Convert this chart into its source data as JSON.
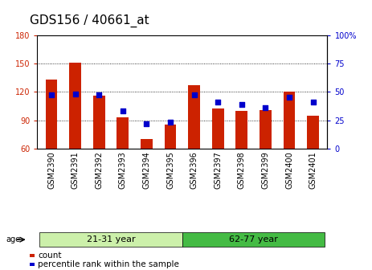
{
  "title": "GDS156 / 40661_at",
  "samples": [
    "GSM2390",
    "GSM2391",
    "GSM2392",
    "GSM2393",
    "GSM2394",
    "GSM2395",
    "GSM2396",
    "GSM2397",
    "GSM2398",
    "GSM2399",
    "GSM2400",
    "GSM2401"
  ],
  "counts": [
    133,
    151,
    116,
    93,
    70,
    85,
    127,
    102,
    100,
    101,
    120,
    95
  ],
  "percentiles": [
    47,
    48,
    47,
    33,
    22,
    23,
    47,
    41,
    39,
    36,
    45,
    41
  ],
  "ylim": [
    60,
    180
  ],
  "yticks": [
    60,
    90,
    120,
    150,
    180
  ],
  "y2lim": [
    0,
    100
  ],
  "y2ticks": [
    0,
    25,
    50,
    75,
    100
  ],
  "bar_color": "#cc2200",
  "dot_color": "#0000cc",
  "bar_bottom": 60,
  "groups": [
    {
      "label": "21-31 year",
      "start": 0,
      "end": 6,
      "color": "#ccf0aa"
    },
    {
      "label": "62-77 year",
      "start": 6,
      "end": 12,
      "color": "#44bb44"
    }
  ],
  "age_label": "age",
  "legend_count_label": "count",
  "legend_pct_label": "percentile rank within the sample",
  "title_fontsize": 11,
  "tick_fontsize": 7,
  "group_label_fontsize": 8,
  "legend_fontsize": 7.5,
  "ytick_color_left": "#cc2200",
  "ytick_color_right": "#0000cc"
}
